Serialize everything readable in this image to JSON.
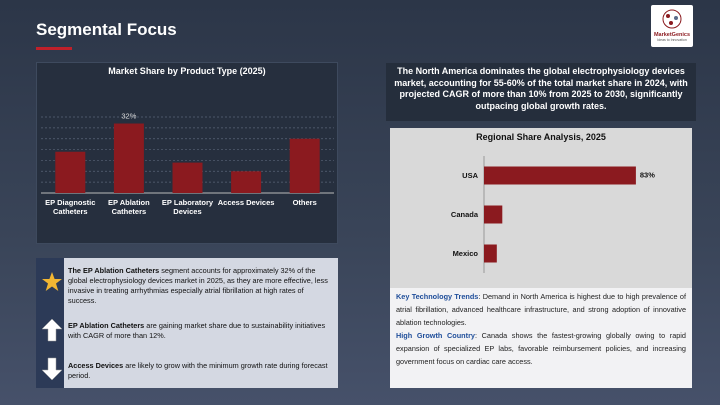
{
  "header": {
    "title": "Segmental Focus",
    "logo_text": "MarketGenics",
    "logo_tagline": "Ideas to Innovation"
  },
  "chart_data": [
    {
      "type": "bar",
      "title": "Market Share by Product Type (2025)",
      "categories": [
        "EP Diagnostic Catheters",
        "EP Ablation Catheters",
        "EP Laboratory Devices",
        "Access Devices",
        "Others"
      ],
      "values": [
        19,
        32,
        14,
        10,
        25
      ],
      "value_labels": [
        null,
        "32%",
        null,
        null,
        null
      ],
      "color": "#8b1a1f",
      "ylim": [
        0,
        35
      ],
      "yticks": [
        0,
        5,
        10,
        15,
        20,
        25,
        30,
        35
      ],
      "grid": true
    },
    {
      "type": "barh",
      "title": "Regional Share Analysis, 2025",
      "categories": [
        "USA",
        "Canada",
        "Mexico"
      ],
      "values": [
        83,
        10,
        7
      ],
      "value_labels": [
        "83%",
        null,
        null
      ],
      "color": "#8b1a1f",
      "xlim": [
        0,
        100
      ]
    }
  ],
  "callout": "The North America dominates the global electrophysiology devices market, accounting for 55-60% of the total market share in 2024, with projected CAGR of more than 10% from 2025 to 2030, significantly outpacing global growth rates.",
  "highlights": [
    {
      "bold": "The EP Ablation Catheters",
      "text": " segment accounts for approximately 32% of the global electrophysiology devices market in 2025, as they are more effective, less invasive in treating arrhythmias especially atrial fibrillation at high rates of success."
    },
    {
      "bold": "EP Ablation Catheters",
      "text": " are gaining market share due to sustainability initiatives with CAGR of more than 12%."
    },
    {
      "bold": "Access Devices",
      "text": " are likely to grow with the minimum growth rate during forecast period."
    }
  ],
  "insights": [
    {
      "label": "Key Technology Trends",
      "text": ": Demand in North America is highest due to high prevalence of atrial fibrillation, advanced healthcare infrastructure, and strong adoption of innovative ablation technologies."
    },
    {
      "label": "High Growth Country",
      "text": ": Canada shows the fastest-growing globally owing to rapid expansion of specialized EP labs, favorable reimbursement policies, and increasing government focus on cardiac care access."
    }
  ]
}
